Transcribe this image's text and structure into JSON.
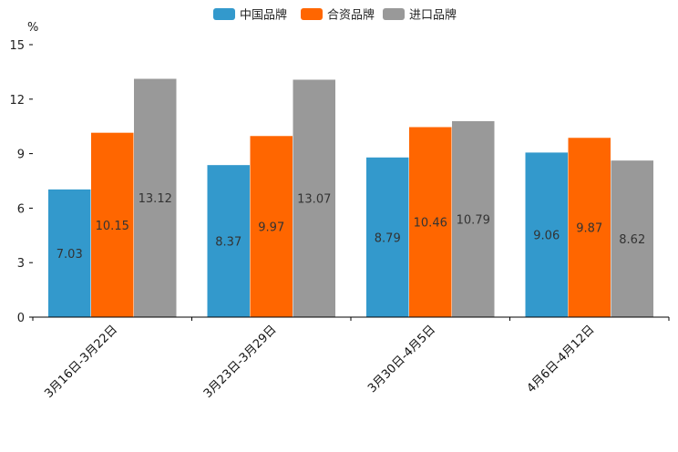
{
  "chart_data": {
    "type": "bar",
    "title": "",
    "xlabel": "",
    "ylabel": "%",
    "ylim": [
      0,
      15
    ],
    "yticks": [
      0,
      3,
      6,
      9,
      12,
      15
    ],
    "categories": [
      "3月16日-3月22日",
      "3月23日-3月29日",
      "3月30日-4月5日",
      "4月6日-4月12日"
    ],
    "series": [
      {
        "name": "中国品牌",
        "color": "#3399CC",
        "values": [
          7.03,
          8.37,
          8.79,
          9.06
        ]
      },
      {
        "name": "合资品牌",
        "color": "#FF6600",
        "values": [
          10.15,
          9.97,
          10.46,
          9.87
        ]
      },
      {
        "name": "进口品牌",
        "color": "#999999",
        "values": [
          13.12,
          13.07,
          10.79,
          8.62
        ]
      }
    ],
    "legend_position": "top-center",
    "grid": false
  }
}
